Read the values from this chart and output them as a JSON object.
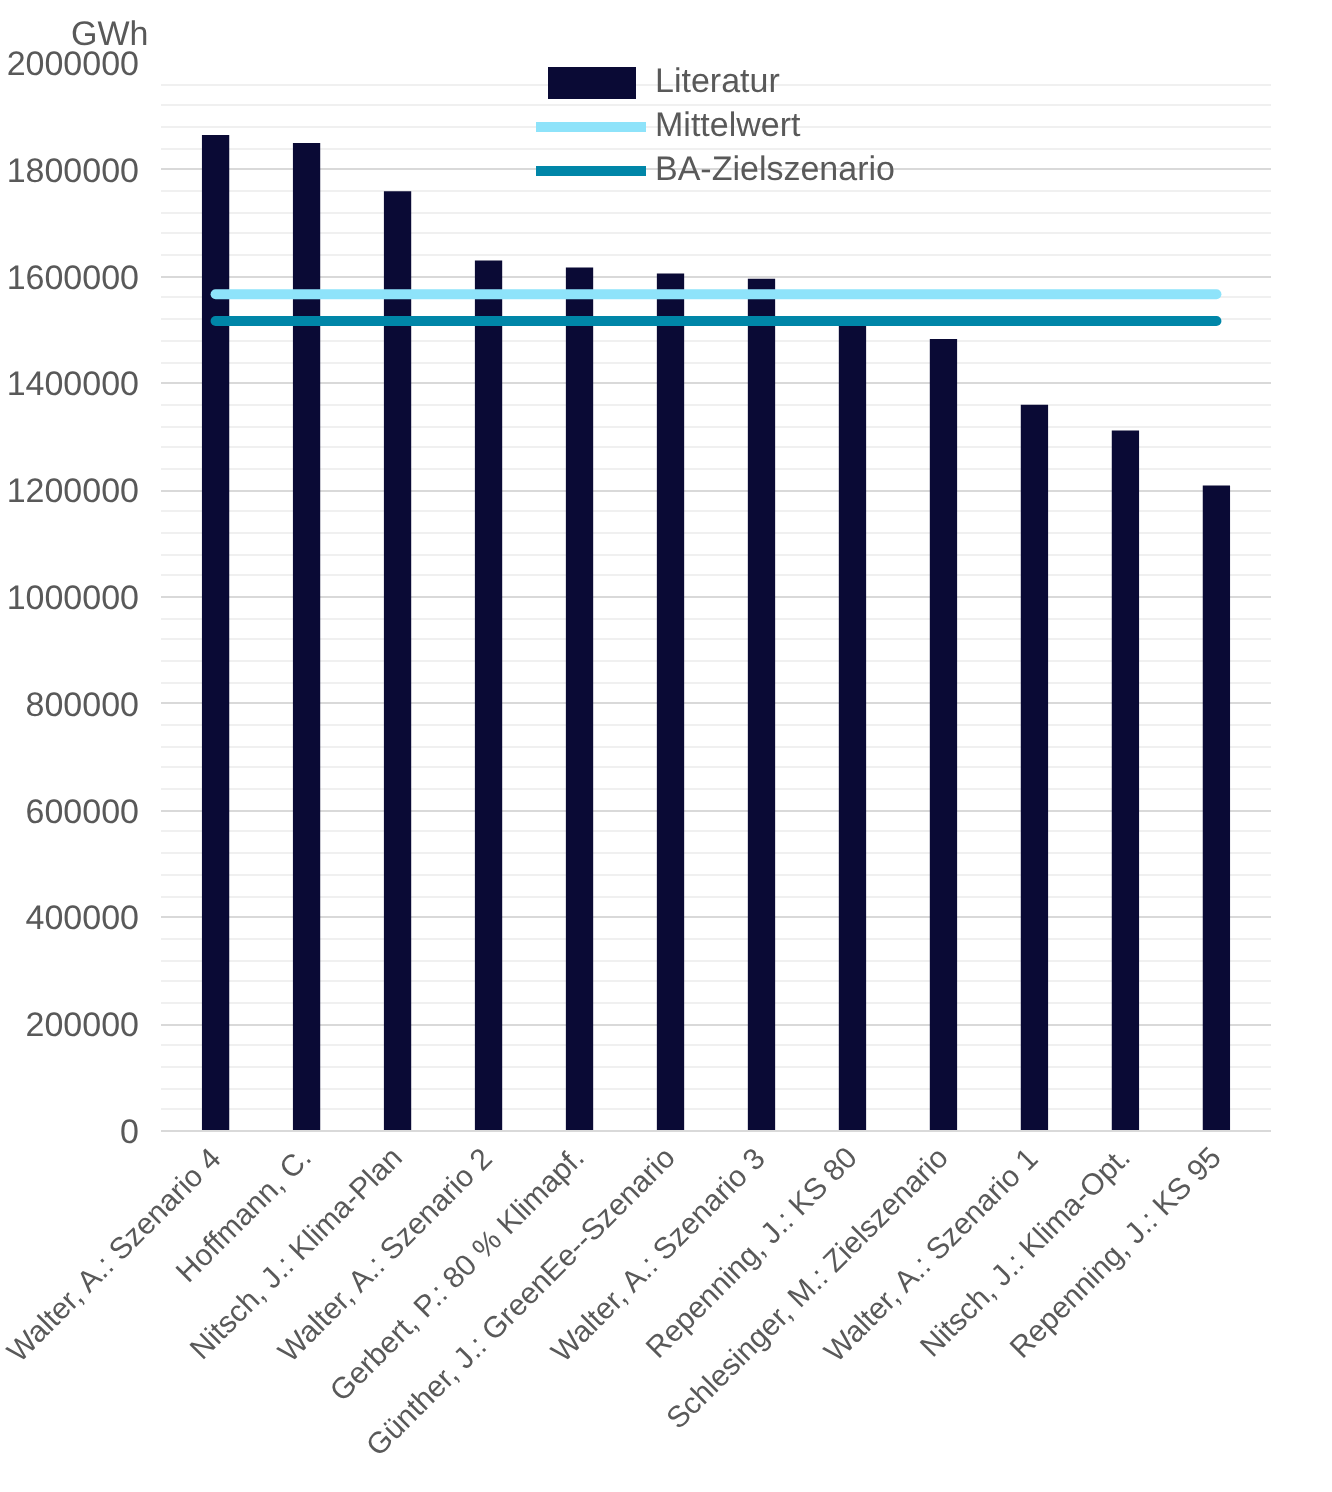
{
  "chart_data": {
    "type": "bar",
    "ylabel": "GWh",
    "categories": [
      "Walter, A.: Szenario 4",
      "Hoffmann, C.",
      "Nitsch, J.: Klima-Plan",
      "Walter, A.: Szenario 2",
      "Gerbert, P.: 80 % Klimapf.",
      "Günther, J.: GreenEe--Szenario",
      "Walter, A.: Szenario 3",
      "Repenning, J.: KS 80",
      "Schlesinger, M.: Zielszenario",
      "Walter, A.: Szenario 1",
      "Nitsch, J.: Klima-Opt.",
      "Repenning, J.: KS 95"
    ],
    "series": [
      {
        "name": "Literatur",
        "color": "#0a0a35",
        "values": [
          1865000,
          1850000,
          1760000,
          1630000,
          1617000,
          1606000,
          1596000,
          1515000,
          1483000,
          1360000,
          1312000,
          1209000
        ]
      },
      {
        "name": "Mittelwert",
        "type": "line",
        "color": "#8ee3fa",
        "values": [
          1567000,
          1567000,
          1567000,
          1567000,
          1567000,
          1567000,
          1567000,
          1567000,
          1567000,
          1567000,
          1567000,
          1567000
        ]
      },
      {
        "name": "BA-Zielszenario",
        "type": "line",
        "color": "#0086a8",
        "values": [
          1517000,
          1517000,
          1517000,
          1517000,
          1517000,
          1517000,
          1517000,
          1517000,
          1517000,
          1517000,
          1517000,
          1517000
        ]
      }
    ],
    "ylim": [
      0,
      2000000
    ],
    "yticks": [
      0,
      {
        "value": 40000,
        "label": null
      },
      {
        "value": 80000,
        "label": null
      },
      {
        "value": 120000,
        "label": null
      },
      {
        "value": 160000,
        "label": null
      },
      200000,
      {
        "value": 240000,
        "label": null
      },
      {
        "value": 280000,
        "label": null
      },
      {
        "value": 320000,
        "label": null
      },
      {
        "value": 360000,
        "label": null
      },
      400000,
      {
        "value": 440000,
        "label": null
      },
      {
        "value": 480000,
        "label": null
      },
      {
        "value": 520000,
        "label": null
      },
      {
        "value": 560000,
        "label": null
      },
      600000,
      {
        "value": 640000,
        "label": null
      },
      {
        "value": 680000,
        "label": null
      },
      {
        "value": 720000,
        "label": null
      },
      {
        "value": 760000,
        "label": null
      },
      800000,
      {
        "value": 840000,
        "label": null
      },
      {
        "value": 880000,
        "label": null
      },
      {
        "value": 920000,
        "label": null
      },
      {
        "value": 960000,
        "label": null
      },
      1000000,
      {
        "value": 1040000,
        "label": null
      },
      {
        "value": 1080000,
        "label": null
      },
      {
        "value": 1120000,
        "label": null
      },
      {
        "value": 1160000,
        "label": null
      },
      1200000,
      {
        "value": 1240000,
        "label": null
      },
      {
        "value": 1280000,
        "label": null
      },
      {
        "value": 1320000,
        "label": null
      },
      {
        "value": 1360000,
        "label": null
      },
      1400000,
      {
        "value": 1440000,
        "label": null
      },
      {
        "value": 1480000,
        "label": null
      },
      {
        "value": 1520000,
        "label": null
      },
      {
        "value": 1560000,
        "label": null
      },
      1600000,
      {
        "value": 1640000,
        "label": null
      },
      {
        "value": 1680000,
        "label": null
      },
      {
        "value": 1720000,
        "label": null
      },
      {
        "value": 1760000,
        "label": null
      },
      1800000,
      {
        "value": 1840000,
        "label": null
      },
      {
        "value": 1880000,
        "label": null
      },
      {
        "value": 1920000,
        "label": null
      },
      {
        "value": 1960000,
        "label": null
      },
      2000000
    ],
    "grid": "y",
    "legend": "top"
  }
}
